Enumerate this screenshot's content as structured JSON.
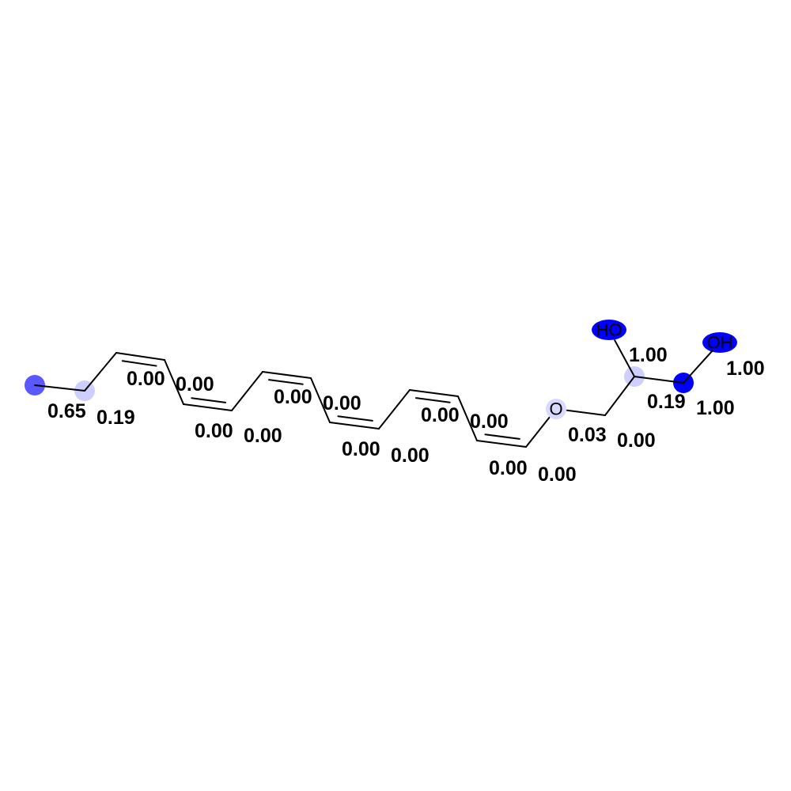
{
  "molecule": {
    "atom_labels": {
      "oxygen_ether": "O",
      "hydroxyl_left": "HO",
      "hydroxyl_right": "OH"
    },
    "highlight_color": "#0000ff",
    "atoms": [
      {
        "id": 0,
        "weight": 0.65,
        "label": "0.65"
      },
      {
        "id": 1,
        "weight": 0.19,
        "label": "0.19"
      },
      {
        "id": 2,
        "weight": 0.0,
        "label": "0.00"
      },
      {
        "id": 3,
        "weight": 0.0,
        "label": "0.00"
      },
      {
        "id": 4,
        "weight": 0.0,
        "label": "0.00"
      },
      {
        "id": 5,
        "weight": 0.0,
        "label": "0.00"
      },
      {
        "id": 6,
        "weight": 0.0,
        "label": "0.00"
      },
      {
        "id": 7,
        "weight": 0.0,
        "label": "0.00"
      },
      {
        "id": 8,
        "weight": 0.0,
        "label": "0.00"
      },
      {
        "id": 9,
        "weight": 0.0,
        "label": "0.00"
      },
      {
        "id": 10,
        "weight": 0.0,
        "label": "0.00"
      },
      {
        "id": 11,
        "weight": 0.0,
        "label": "0.00"
      },
      {
        "id": 12,
        "weight": 0.0,
        "label": "0.00"
      },
      {
        "id": 13,
        "weight": 0.0,
        "label": "0.00"
      },
      {
        "id": 14,
        "weight": 0.03,
        "label": "0.03"
      },
      {
        "id": 15,
        "weight": 0.0,
        "label": "0.00"
      },
      {
        "id": 16,
        "weight": 0.19,
        "label": "0.19"
      },
      {
        "id": 17,
        "weight": 1.0,
        "label": "1.00"
      },
      {
        "id": 18,
        "weight": 1.0,
        "label": "1.00"
      },
      {
        "id": 19,
        "weight": 1.0,
        "label": "1.00"
      }
    ]
  }
}
